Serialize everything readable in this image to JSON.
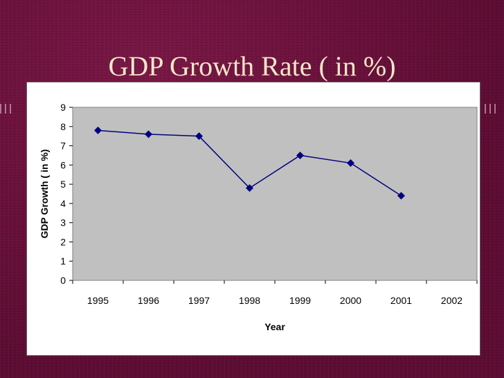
{
  "slide": {
    "title": "GDP Growth Rate ( in %)"
  },
  "colors": {
    "background": "#6b0f3a",
    "title": "#f2e7c8",
    "plot_area": "#c0c0c0",
    "series": "#000080"
  },
  "chart_data": {
    "type": "line",
    "title": "",
    "xlabel": "Year",
    "ylabel": "GDP Growth ( in %)",
    "categories": [
      "1995",
      "1996",
      "1997",
      "1998",
      "1999",
      "2000",
      "2001",
      "2002"
    ],
    "series": [
      {
        "values": [
          7.8,
          7.6,
          7.5,
          4.8,
          6.5,
          6.1,
          4.4,
          null
        ],
        "marker": "diamond"
      }
    ],
    "ylim": [
      0,
      9
    ],
    "yticks": [
      0,
      1,
      2,
      3,
      4,
      5,
      6,
      7,
      8,
      9
    ],
    "grid": false,
    "legend": "none"
  }
}
